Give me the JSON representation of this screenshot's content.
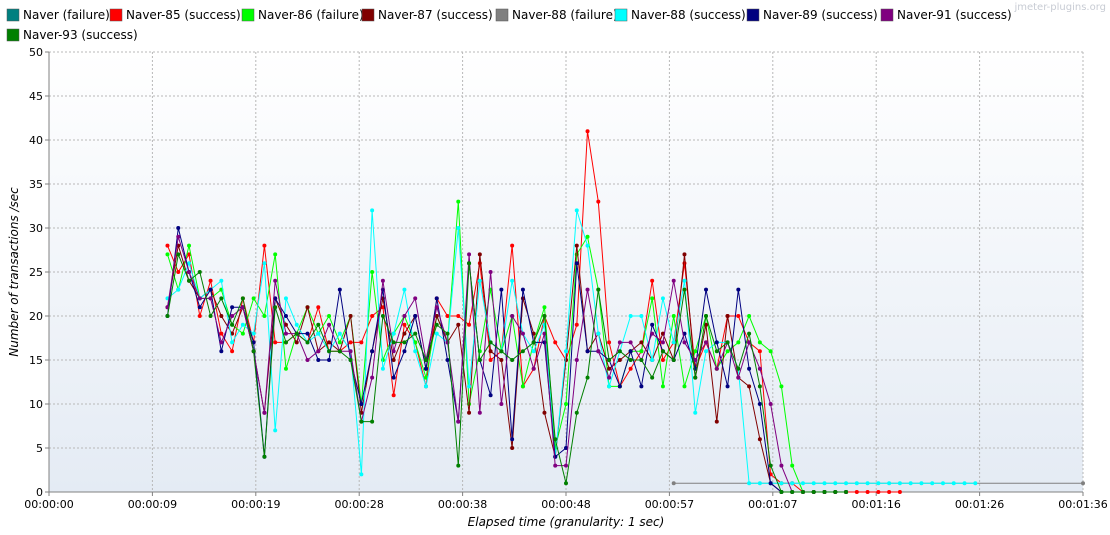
{
  "watermark": "jmeter-plugins.org",
  "chart_data": {
    "type": "line",
    "title": "",
    "xlabel": "Elapsed time (granularity: 1 sec)",
    "ylabel": "Number of transactions /sec",
    "x_unit": "seconds",
    "xlim": [
      0,
      96
    ],
    "ylim": [
      0,
      50
    ],
    "x_ticks": [
      {
        "v": 0,
        "label": "00:00:00"
      },
      {
        "v": 9.6,
        "label": "00:00:09"
      },
      {
        "v": 19.2,
        "label": "00:00:19"
      },
      {
        "v": 28.8,
        "label": "00:00:28"
      },
      {
        "v": 38.4,
        "label": "00:00:38"
      },
      {
        "v": 48.0,
        "label": "00:00:48"
      },
      {
        "v": 57.6,
        "label": "00:00:57"
      },
      {
        "v": 67.2,
        "label": "00:01:07"
      },
      {
        "v": 76.8,
        "label": "00:01:16"
      },
      {
        "v": 86.4,
        "label": "00:01:26"
      },
      {
        "v": 96.0,
        "label": "00:01:36"
      }
    ],
    "y_ticks": [
      0,
      5,
      10,
      15,
      20,
      25,
      30,
      35,
      40,
      45,
      50
    ],
    "grid": true,
    "legend_position": "top",
    "series": [
      {
        "name": "Naver (failure)",
        "color": "#008080",
        "x": [],
        "y": []
      },
      {
        "name": "Naver-85 (success)",
        "color": "#ff0000",
        "x": [
          11,
          12,
          13,
          14,
          15,
          16,
          17,
          18,
          19,
          20,
          21,
          22,
          23,
          24,
          25,
          26,
          27,
          28,
          29,
          30,
          31,
          32,
          33,
          34,
          35,
          36,
          37,
          38,
          39,
          40,
          41,
          42,
          43,
          44,
          45,
          46,
          47,
          48,
          49,
          50,
          51,
          52,
          53,
          54,
          55,
          56,
          57,
          58,
          59,
          60,
          61,
          62,
          63,
          64,
          65,
          66,
          67,
          68,
          69,
          70,
          71,
          72,
          73,
          74,
          75,
          76,
          77,
          78,
          79
        ],
        "y": [
          28,
          25,
          27,
          20,
          24,
          18,
          16,
          22,
          17,
          28,
          17,
          17,
          18,
          17,
          21,
          16,
          16,
          17,
          17,
          20,
          21,
          11,
          19,
          17,
          12,
          22,
          20,
          20,
          19,
          26,
          15,
          16,
          28,
          12,
          14,
          20,
          17,
          15,
          19,
          41,
          33,
          17,
          12,
          14,
          16,
          24,
          15,
          17,
          26,
          14,
          17,
          14,
          20,
          20,
          17,
          16,
          2,
          1,
          1,
          0,
          0,
          0,
          0,
          0,
          0,
          0,
          0,
          0,
          0
        ],
        "marker_x": [
          11,
          12,
          13,
          14,
          15,
          16,
          17,
          18,
          19,
          20,
          21,
          22,
          23,
          24,
          25,
          26,
          27,
          28,
          29,
          30,
          31,
          32,
          33,
          34,
          35,
          36,
          37,
          38,
          39,
          40,
          41,
          42,
          43,
          44,
          45,
          46,
          47,
          48,
          49,
          50,
          51,
          52,
          53,
          54,
          55,
          56,
          57,
          58,
          59,
          60,
          61,
          62,
          63,
          64,
          65,
          66,
          67,
          68,
          69,
          70,
          71,
          72,
          73,
          74,
          75,
          76,
          77,
          78,
          79
        ],
        "note": ""
      },
      {
        "name": "Naver-86 (failure)",
        "color": "#00ff00",
        "x": [
          11,
          12,
          13,
          14,
          15,
          16,
          17,
          18,
          19,
          20,
          21,
          22,
          23,
          24,
          25,
          26,
          27,
          28,
          29,
          30,
          31,
          32,
          33,
          34,
          35,
          36,
          37,
          38,
          39,
          40,
          41,
          42,
          43,
          44,
          45,
          46,
          47,
          48,
          49,
          50,
          51,
          52,
          53,
          54,
          55,
          56,
          57,
          58,
          59,
          60,
          61,
          62,
          63,
          64,
          65,
          66,
          67,
          68,
          69,
          70,
          71,
          72,
          73,
          74
        ],
        "y": [
          27,
          23,
          28,
          22,
          22,
          23,
          19,
          18,
          22,
          20,
          27,
          14,
          18,
          21,
          18,
          20,
          17,
          20,
          10,
          25,
          15,
          18,
          20,
          17,
          13,
          20,
          17,
          33,
          10,
          16,
          23,
          16,
          20,
          12,
          17,
          21,
          5,
          10,
          27,
          29,
          23,
          12,
          12,
          16,
          16,
          22,
          12,
          20,
          12,
          16,
          20,
          14,
          16,
          17,
          20,
          17,
          16,
          12,
          3,
          0,
          0,
          0,
          0,
          0
        ],
        "marker_x": [
          11,
          12,
          13,
          14,
          15,
          16,
          17,
          18,
          19,
          20,
          21,
          22,
          23,
          24,
          25,
          26,
          27,
          28,
          29,
          30,
          31,
          32,
          33,
          34,
          35,
          36,
          37,
          38,
          39,
          40,
          41,
          42,
          43,
          44,
          45,
          46,
          47,
          48,
          49,
          50,
          51,
          52,
          53,
          54,
          55,
          56,
          57,
          58,
          59,
          60,
          61,
          62,
          63,
          64,
          65,
          66,
          67,
          68,
          69,
          70,
          71,
          72,
          73,
          74
        ],
        "note": ""
      },
      {
        "name": "Naver-87 (success)",
        "color": "#800000",
        "x": [
          11,
          12,
          13,
          14,
          15,
          16,
          17,
          18,
          19,
          20,
          21,
          22,
          23,
          24,
          25,
          26,
          27,
          28,
          29,
          30,
          31,
          32,
          33,
          34,
          35,
          36,
          37,
          38,
          39,
          40,
          41,
          42,
          43,
          44,
          45,
          46,
          47,
          48,
          49,
          50,
          51,
          52,
          53,
          54,
          55,
          56,
          57,
          58,
          59,
          60,
          61,
          62,
          63,
          64,
          65,
          66,
          67,
          68,
          69,
          70,
          71,
          72,
          73,
          74
        ],
        "y": [
          21,
          28,
          24,
          22,
          23,
          20,
          18,
          21,
          16,
          9,
          22,
          19,
          17,
          21,
          16,
          17,
          16,
          20,
          9,
          16,
          22,
          15,
          18,
          20,
          14,
          20,
          17,
          19,
          9,
          27,
          16,
          15,
          5,
          22,
          18,
          9,
          4,
          15,
          28,
          16,
          18,
          14,
          15,
          16,
          17,
          15,
          18,
          15,
          27,
          13,
          19,
          8,
          20,
          13,
          12,
          6,
          1,
          0,
          0,
          0,
          0,
          0,
          0,
          0
        ],
        "marker_x": [
          11,
          12,
          13,
          14,
          15,
          16,
          17,
          18,
          19,
          20,
          21,
          22,
          23,
          24,
          25,
          26,
          27,
          28,
          29,
          30,
          31,
          32,
          33,
          34,
          35,
          36,
          37,
          38,
          39,
          40,
          41,
          42,
          43,
          44,
          45,
          46,
          47,
          48,
          49,
          50,
          51,
          52,
          53,
          54,
          55,
          56,
          57,
          58,
          59,
          60,
          61,
          62,
          63,
          64,
          65,
          66,
          67,
          68,
          69,
          70,
          71,
          72,
          73,
          74
        ],
        "note": ""
      },
      {
        "name": "Naver-88 (failure)",
        "color": "#808080",
        "x": [
          58,
          96
        ],
        "y": [
          1,
          1
        ],
        "note": ""
      },
      {
        "name": "Naver-88 (success)",
        "color": "#00ffff",
        "x": [
          11,
          12,
          13,
          14,
          15,
          16,
          17,
          18,
          19,
          20,
          21,
          22,
          23,
          24,
          25,
          26,
          27,
          28,
          29,
          30,
          31,
          32,
          33,
          34,
          35,
          36,
          37,
          38,
          39,
          40,
          41,
          42,
          43,
          44,
          45,
          46,
          47,
          48,
          49,
          50,
          51,
          52,
          53,
          54,
          55,
          56,
          57,
          58,
          59,
          60,
          61,
          62,
          63,
          64,
          65,
          66,
          67,
          68,
          69,
          70,
          71,
          72,
          73,
          74,
          75,
          76,
          77,
          78,
          79,
          80,
          81,
          82,
          83,
          84,
          85,
          86
        ],
        "y": [
          22,
          23,
          26,
          22,
          23,
          24,
          17,
          19,
          18,
          26,
          7,
          22,
          19,
          17,
          18,
          16,
          18,
          16,
          2,
          32,
          14,
          18,
          23,
          16,
          12,
          18,
          17,
          30,
          12,
          24,
          17,
          16,
          24,
          18,
          16,
          19,
          4,
          16,
          32,
          28,
          18,
          12,
          16,
          20,
          20,
          15,
          22,
          17,
          24,
          9,
          16,
          17,
          17,
          14,
          1,
          1,
          1,
          1,
          1,
          1,
          1,
          1,
          1,
          1,
          1,
          1,
          1,
          1,
          1,
          1,
          1,
          1,
          1,
          1,
          1,
          1
        ],
        "note": ""
      },
      {
        "name": "Naver-89 (success)",
        "color": "#000080",
        "x": [
          11,
          12,
          13,
          14,
          15,
          16,
          17,
          18,
          19,
          20,
          21,
          22,
          23,
          24,
          25,
          26,
          27,
          28,
          29,
          30,
          31,
          32,
          33,
          34,
          35,
          36,
          37,
          38,
          39,
          40,
          41,
          42,
          43,
          44,
          45,
          46,
          47,
          48,
          49,
          50,
          51,
          52,
          53,
          54,
          55,
          56,
          57,
          58,
          59,
          60,
          61,
          62,
          63,
          64,
          65,
          66,
          67,
          68,
          69,
          70,
          71,
          72,
          73,
          74
        ],
        "y": [
          20,
          30,
          25,
          21,
          23,
          16,
          21,
          21,
          17,
          4,
          22,
          20,
          18,
          18,
          15,
          15,
          23,
          15,
          10,
          16,
          23,
          13,
          16,
          20,
          14,
          22,
          15,
          8,
          26,
          15,
          11,
          23,
          6,
          23,
          17,
          17,
          4,
          5,
          26,
          16,
          16,
          15,
          12,
          16,
          12,
          19,
          16,
          15,
          18,
          14,
          23,
          17,
          12,
          23,
          14,
          10,
          1,
          0,
          0,
          0,
          0,
          0,
          0,
          0
        ],
        "note": ""
      },
      {
        "name": "Naver-91 (success)",
        "color": "#800080",
        "x": [
          11,
          12,
          13,
          14,
          15,
          16,
          17,
          18,
          19,
          20,
          21,
          22,
          23,
          24,
          25,
          26,
          27,
          28,
          29,
          30,
          31,
          32,
          33,
          34,
          35,
          36,
          37,
          38,
          39,
          40,
          41,
          42,
          43,
          44,
          45,
          46,
          47,
          48,
          49,
          50,
          51,
          52,
          53,
          54,
          55,
          56,
          57,
          58,
          59,
          60,
          61,
          62,
          63,
          64,
          65,
          66,
          67,
          68,
          69,
          70,
          71,
          72,
          73,
          74
        ],
        "y": [
          21,
          29,
          25,
          22,
          22,
          17,
          20,
          21,
          16,
          9,
          24,
          18,
          18,
          15,
          16,
          19,
          16,
          16,
          8,
          13,
          24,
          16,
          20,
          22,
          15,
          21,
          17,
          8,
          27,
          9,
          25,
          10,
          20,
          18,
          14,
          18,
          3,
          3,
          15,
          23,
          16,
          13,
          17,
          17,
          15,
          18,
          17,
          24,
          17,
          15,
          17,
          14,
          17,
          13,
          17,
          14,
          10,
          3,
          0,
          0,
          0,
          0,
          0,
          0
        ],
        "note": ""
      },
      {
        "name": "Naver-93 (success)",
        "color": "#008000",
        "x": [
          11,
          12,
          13,
          14,
          15,
          16,
          17,
          18,
          19,
          20,
          21,
          22,
          23,
          24,
          25,
          26,
          27,
          28,
          29,
          30,
          31,
          32,
          33,
          34,
          35,
          36,
          37,
          38,
          39,
          40,
          41,
          42,
          43,
          44,
          45,
          46,
          47,
          48,
          49,
          50,
          51,
          52,
          53,
          54,
          55,
          56,
          57,
          58,
          59,
          60,
          61,
          62,
          63,
          64,
          65,
          66,
          67,
          68,
          69,
          70,
          71,
          72,
          73,
          74
        ],
        "y": [
          20,
          27,
          24,
          25,
          20,
          22,
          19,
          22,
          16,
          4,
          21,
          17,
          18,
          17,
          19,
          16,
          16,
          15,
          8,
          8,
          20,
          17,
          17,
          18,
          15,
          19,
          18,
          3,
          26,
          15,
          17,
          16,
          15,
          16,
          17,
          20,
          6,
          1,
          9,
          13,
          23,
          15,
          16,
          15,
          15,
          13,
          16,
          15,
          23,
          13,
          20,
          16,
          17,
          14,
          18,
          12,
          3,
          0,
          0,
          0,
          0,
          0,
          0,
          0
        ],
        "note": ""
      }
    ]
  }
}
